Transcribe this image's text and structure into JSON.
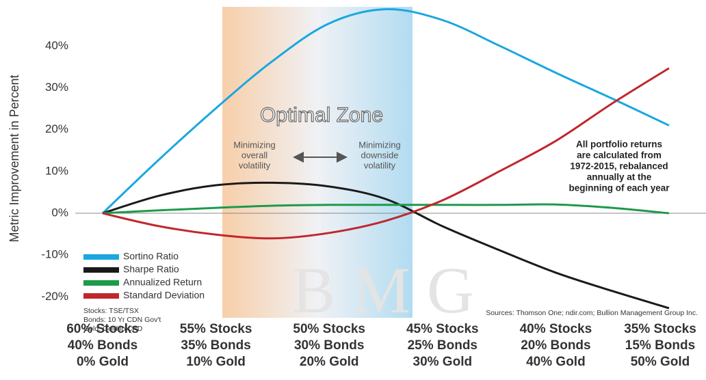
{
  "chart_data": {
    "type": "line",
    "y_label": "Metric Improvement in Percent",
    "x": [
      0,
      5,
      10,
      15,
      20,
      25,
      30,
      35,
      40,
      45,
      50
    ],
    "xlim": [
      0,
      50
    ],
    "xticks": [
      {
        "value": 0,
        "label": [
          "60% Stocks",
          "40% Bonds",
          "0% Gold"
        ]
      },
      {
        "value": 10,
        "label": [
          "55% Stocks",
          "35% Bonds",
          "10% Gold"
        ]
      },
      {
        "value": 20,
        "label": [
          "50% Stocks",
          "30% Bonds",
          "20% Gold"
        ]
      },
      {
        "value": 30,
        "label": [
          "45% Stocks",
          "25% Bonds",
          "30% Gold"
        ]
      },
      {
        "value": 40,
        "label": [
          "40% Stocks",
          "20% Bonds",
          "40% Gold"
        ]
      },
      {
        "value": 50,
        "label": [
          "35% Stocks",
          "15% Bonds",
          "50% Gold"
        ]
      }
    ],
    "ylim": [
      -25,
      51
    ],
    "yticks": [
      {
        "value": 40,
        "label": "40%"
      },
      {
        "value": 30,
        "label": "30%"
      },
      {
        "value": 20,
        "label": "20%"
      },
      {
        "value": 10,
        "label": "10%"
      },
      {
        "value": 0,
        "label": "0%"
      },
      {
        "value": -10,
        "label": "-10%"
      },
      {
        "value": -20,
        "label": "-20%"
      }
    ],
    "grid": false,
    "legend": "lower left",
    "series": [
      {
        "name": "Sortino Ratio",
        "color": "#1aa7e0",
        "values": [
          0,
          12.9,
          25.1,
          36.4,
          45.4,
          48.8,
          46.2,
          40.1,
          33.6,
          27.4,
          21.0
        ]
      },
      {
        "name": "Sharpe Ratio",
        "color": "#1a1a1a",
        "values": [
          0,
          4.2,
          6.7,
          7.3,
          6.4,
          3.4,
          -3.1,
          -8.8,
          -14.2,
          -18.6,
          -22.7
        ]
      },
      {
        "name": "Annualized Return",
        "color": "#1d9a4a",
        "values": [
          0,
          0.7,
          1.3,
          1.8,
          2.0,
          2.0,
          2.0,
          2.0,
          2.1,
          1.3,
          0
        ]
      },
      {
        "name": "Standard Deviation",
        "color": "#c0272d",
        "values": [
          0,
          -3.1,
          -5.1,
          -6.0,
          -4.7,
          -1.8,
          3.1,
          10.0,
          17.3,
          26.3,
          34.7
        ]
      }
    ],
    "zone_title": "Optimal Zone",
    "zone_left": [
      "Minimizing",
      "overall",
      "volatility"
    ],
    "zone_right": [
      "Minimizing",
      "downside",
      "volatility"
    ],
    "note": [
      "All portfolio returns",
      "are calculated from",
      "1972-2015, rebalanced",
      "annually at the",
      "beginning of each year"
    ],
    "footnotes": [
      "Stocks: TSE/TSX",
      "Bonds: 10 Yr CDN Gov't",
      "Gold: Gold in CAD"
    ],
    "source": "Sources: Thomson One; ndir.com; Bullion Management Group Inc.",
    "watermark": "B M G"
  }
}
